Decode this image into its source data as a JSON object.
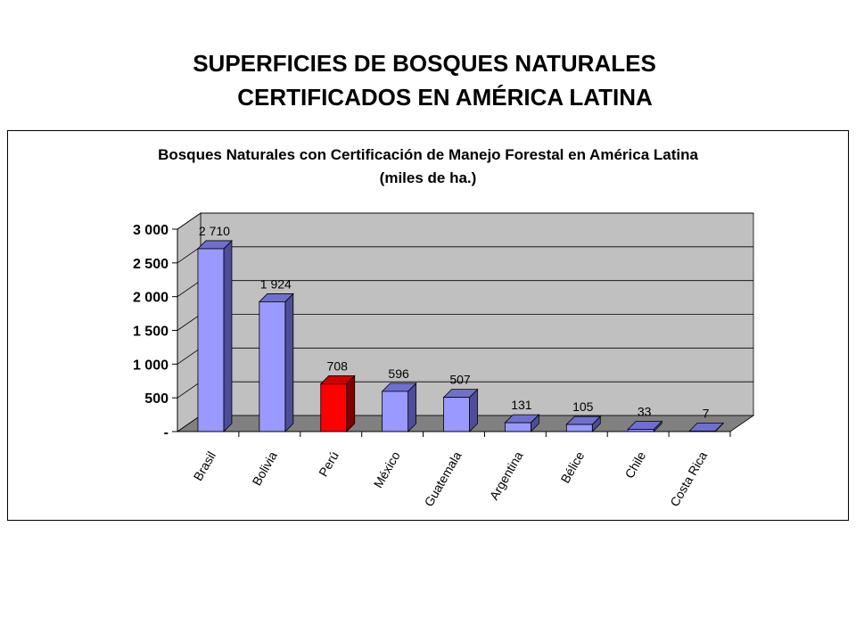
{
  "slide": {
    "title_line1": "SUPERFICIES DE BOSQUES NATURALES",
    "title_line2": "CERTIFICADOS EN AMÉRICA LATINA"
  },
  "chart_data": {
    "type": "bar",
    "title": "Bosques Naturales con Certificación de Manejo Forestal en América Latina",
    "subtitle": "(miles de ha.)",
    "categories": [
      "Brasil",
      "Bolivia",
      "Perú",
      "México",
      "Guatemala",
      "Argentina",
      "Bélice",
      "Chile",
      "Costa Rica"
    ],
    "values": [
      2710,
      1924,
      708,
      596,
      507,
      131,
      105,
      33,
      7
    ],
    "value_labels": [
      "2 710",
      "1 924",
      "708",
      "596",
      "507",
      "131",
      "105",
      "33",
      "7"
    ],
    "highlight_category": "Perú",
    "ylim": [
      0,
      3000
    ],
    "yticks": [
      0,
      500,
      1000,
      1500,
      2000,
      2500,
      3000
    ],
    "ytick_labels": [
      "-",
      "500",
      "1 000",
      "1 500",
      "2 000",
      "2 500",
      "3 000"
    ],
    "grid": true,
    "three_d": true,
    "colors": {
      "bar": "#9999ff",
      "bar_side": "#4d4d99",
      "bar_top": "#7070cc",
      "highlight": "#ff0000",
      "highlight_side": "#800000",
      "highlight_top": "#cc0000",
      "wall": "#c0c0c0",
      "floor": "#808080"
    }
  }
}
